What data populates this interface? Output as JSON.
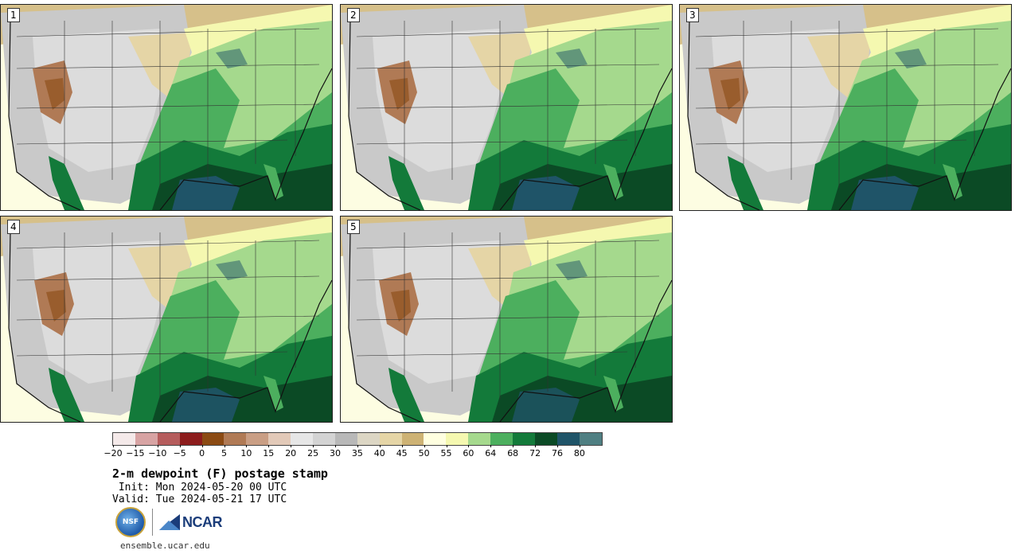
{
  "panels": [
    {
      "label": "1"
    },
    {
      "label": "2"
    },
    {
      "label": "3"
    },
    {
      "label": "4"
    },
    {
      "label": "5"
    }
  ],
  "colorbar": {
    "colors": [
      "#f4e9e9",
      "#d7a3a3",
      "#b55c5c",
      "#8c1c1c",
      "#8b4a13",
      "#b07a55",
      "#c99e84",
      "#e2c9b8",
      "#e6e6e6",
      "#d3d3d3",
      "#b8b8b8",
      "#dcd6c4",
      "#e5d5a6",
      "#cdb274",
      "#ffffe0",
      "#f5f8b0",
      "#a5d98d",
      "#4caf5e",
      "#137a3a",
      "#0b4a25",
      "#1f5468",
      "#4f7f82"
    ],
    "ticks": [
      "−20",
      "−15",
      "−10",
      "−5",
      "0",
      "5",
      "10",
      "15",
      "20",
      "25",
      "30",
      "35",
      "40",
      "45",
      "50",
      "55",
      "60",
      "64",
      "68",
      "72",
      "76",
      "80"
    ]
  },
  "title": "2-m dewpoint (F) postage stamp",
  "init": " Init: Mon 2024-05-20 00 UTC",
  "valid": "Valid: Tue 2024-05-21 17 UTC",
  "logos": {
    "nsf": "NSF",
    "ncar": "NCAR"
  },
  "site": "ensemble.ucar.edu"
}
